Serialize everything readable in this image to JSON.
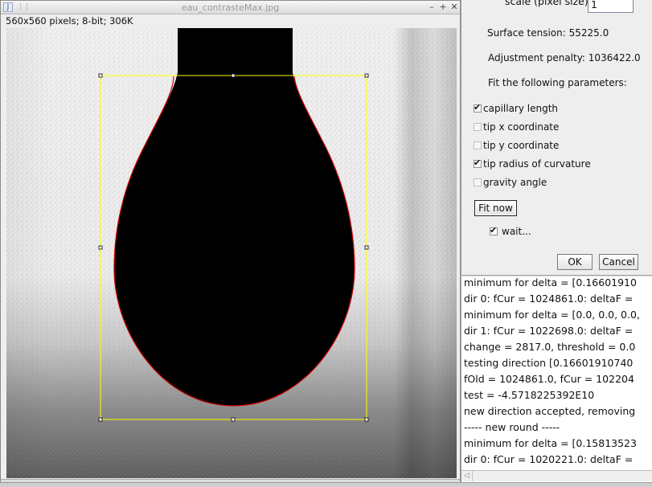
{
  "image_window": {
    "title": "eau_contrasteMax.jpg",
    "info": "560x560 pixels; 8-bit; 306K",
    "controls": {
      "minimize": "–",
      "maximize": "+",
      "close": "✕"
    },
    "icons": {
      "app": "java-cup-icon",
      "grip": "grip-icon"
    }
  },
  "dialog": {
    "scale_label": "scale (pixel size)",
    "scale_value": "1",
    "surface_tension": "Surface tension: 55225.0",
    "adjustment_penalty": "Adjustment penalty: 1036422.0",
    "fit_label": "Fit the following parameters:",
    "parameters": [
      {
        "label": "capillary length",
        "checked": true
      },
      {
        "label": "tip x coordinate",
        "checked": false
      },
      {
        "label": "tip y coordinate",
        "checked": false
      },
      {
        "label": "tip radius of curvature",
        "checked": true
      },
      {
        "label": "gravity angle",
        "checked": false
      }
    ],
    "fit_now": "Fit now",
    "wait_label": "wait...",
    "wait_checked": true,
    "ok": "OK",
    "cancel": "Cancel"
  },
  "log": {
    "lines": [
      "minimum for delta = [0.16601910",
      "dir 0: fCur = 1024861.0: deltaF =",
      "minimum for delta = [0.0, 0.0, 0.0,",
      "dir 1: fCur = 1022698.0: deltaF =",
      "change = 2817.0, threshold = 0.0",
      "testing direction [0.16601910740",
      "fOld = 1024861.0, fCur = 102204",
      "test = -4.5718225392E10",
      "new direction accepted, removing",
      "----- new round -----",
      "minimum for delta = [0.15813523",
      "dir 0: fCur = 1020221.0: deltaF ="
    ]
  },
  "colors": {
    "selection": "#ffff00",
    "contour": "#d40000",
    "drop": "#000000"
  }
}
